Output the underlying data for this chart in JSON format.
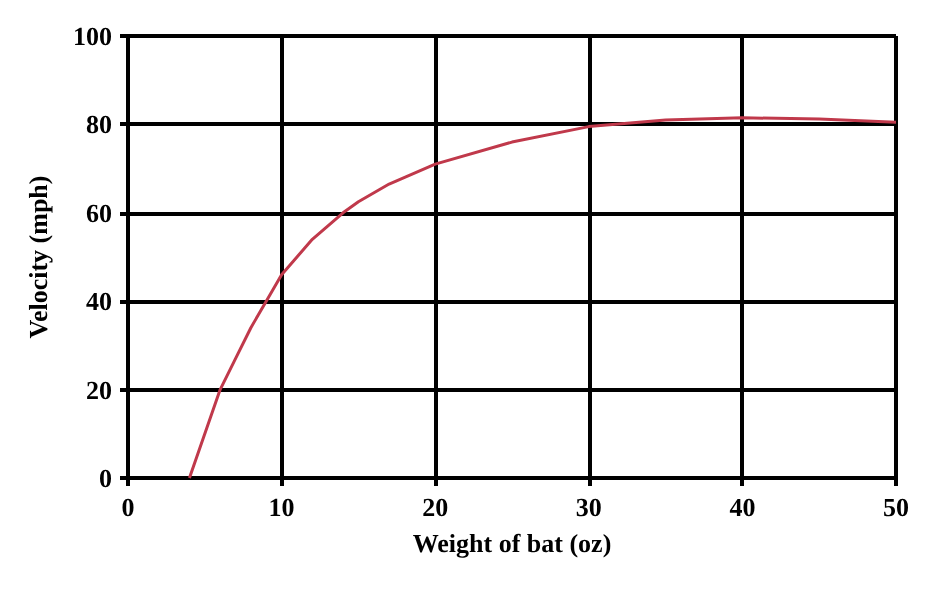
{
  "chart_data": {
    "type": "line",
    "xlabel": "Weight of bat (oz)",
    "ylabel": "Velocity (mph)",
    "x": [
      4,
      5,
      6,
      7,
      8,
      9,
      10,
      12,
      14,
      15,
      17,
      20,
      25,
      30,
      35,
      40,
      45,
      50
    ],
    "series": [
      {
        "color": "#c0394b",
        "values": [
          0,
          10,
          20,
          27,
          34,
          40,
          46,
          54,
          60,
          62.5,
          66.5,
          71,
          76,
          79.5,
          81,
          81.5,
          81.2,
          80.5
        ]
      }
    ],
    "xlim": [
      0,
      50
    ],
    "xticks": [
      0,
      10,
      20,
      30,
      40,
      50
    ],
    "ylim": [
      0,
      100
    ],
    "yticks": [
      0,
      20,
      40,
      60,
      80,
      100
    ],
    "grid": true,
    "marker": "none",
    "line_style": "solid"
  }
}
